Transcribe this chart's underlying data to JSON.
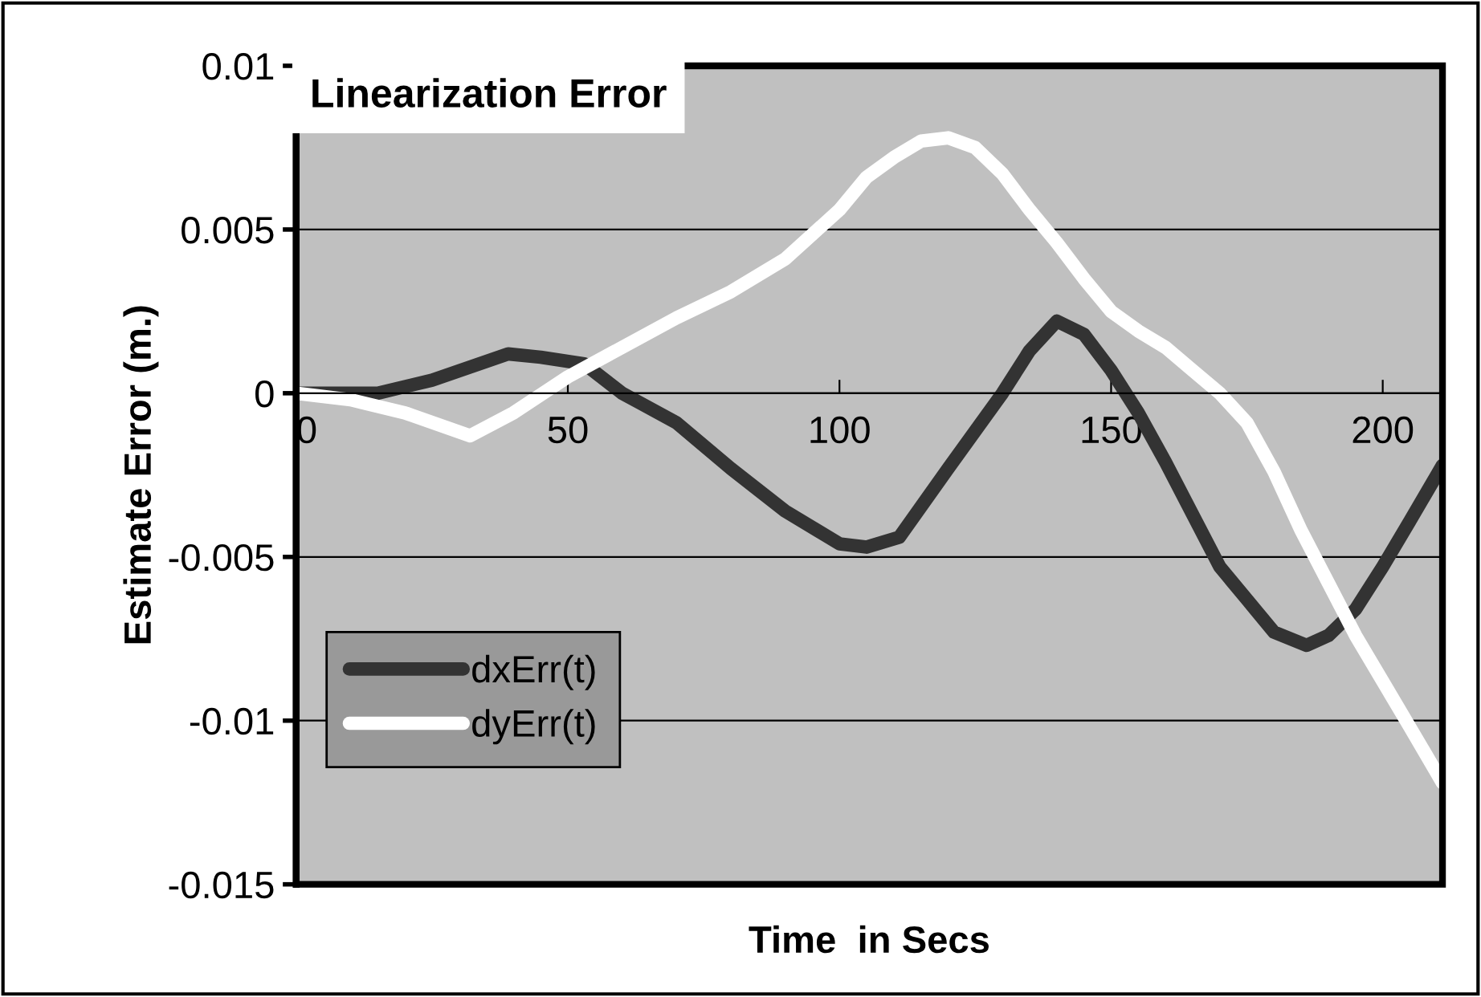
{
  "chart_data": {
    "type": "line",
    "title": "Linearization Error",
    "xlabel": "Time  in Secs",
    "ylabel": "Estimate Error (m.)",
    "xlim": [
      0,
      211
    ],
    "xticks": [
      0,
      50,
      100,
      150,
      200
    ],
    "ylim": [
      -0.015,
      0.01
    ],
    "yticks": [
      -0.015,
      -0.01,
      -0.005,
      0,
      0.005,
      0.01
    ],
    "grid": "y",
    "legend": "bottom left",
    "marker": "none",
    "line_style": "solid",
    "series": [
      {
        "name": "dxErr(t)",
        "color": "#333333",
        "x": [
          0,
          15,
          25,
          39,
          45,
          53,
          60,
          70,
          80,
          90,
          100,
          105,
          111,
          120,
          130,
          135,
          140,
          145,
          150,
          155,
          160,
          165,
          170,
          175,
          180,
          186,
          190,
          195,
          200,
          205,
          211
        ],
        "values": [
          0,
          0,
          0.0004,
          0.0012,
          0.0011,
          0.0009,
          0.0,
          -0.0009,
          -0.0023,
          -0.0036,
          -0.0046,
          -0.0047,
          -0.0044,
          -0.0023,
          0.0,
          0.0013,
          0.0022,
          0.0018,
          0.0007,
          -0.0006,
          -0.0021,
          -0.0037,
          -0.0053,
          -0.0063,
          -0.0073,
          -0.0077,
          -0.0074,
          -0.0066,
          -0.0053,
          -0.0039,
          -0.0022
        ]
      },
      {
        "name": "dyErr(t)",
        "color": "#ffffff",
        "x": [
          0,
          10,
          20,
          32,
          40,
          50,
          60,
          70,
          80,
          90,
          100,
          105,
          110,
          115,
          120,
          125,
          130,
          135,
          140,
          145,
          150,
          155,
          160,
          165,
          170,
          175,
          180,
          185,
          190,
          195,
          200,
          205,
          211
        ],
        "values": [
          0,
          -0.0002,
          -0.0006,
          -0.0013,
          -0.0006,
          0.0005,
          0.0014,
          0.0023,
          0.0031,
          0.0041,
          0.0056,
          0.0066,
          0.0072,
          0.0077,
          0.0078,
          0.0075,
          0.0067,
          0.0056,
          0.0046,
          0.0035,
          0.0025,
          0.0019,
          0.0014,
          0.0007,
          0.0,
          -0.0009,
          -0.0024,
          -0.0042,
          -0.0058,
          -0.0074,
          -0.0088,
          -0.0102,
          -0.0119
        ]
      }
    ]
  }
}
